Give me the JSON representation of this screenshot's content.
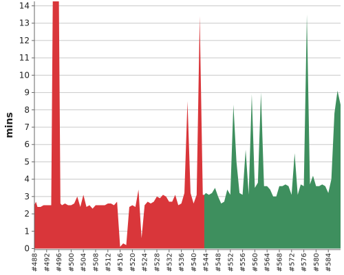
{
  "chart_data": {
    "type": "area",
    "title": "",
    "xlabel": "",
    "ylabel": "mins",
    "ylim": [
      0,
      14
    ],
    "grid": true,
    "y_ticks": [
      0,
      1,
      2,
      3,
      4,
      5,
      6,
      7,
      8,
      9,
      10,
      11,
      12,
      13,
      14
    ],
    "x_tick_labels": [
      "#488",
      "#492",
      "#496",
      "#500",
      "#504",
      "#508",
      "#512",
      "#516",
      "#520",
      "#524",
      "#528",
      "#532",
      "#536",
      "#540",
      "#544",
      "#548",
      "#552",
      "#556",
      "#560",
      "#564",
      "#568",
      "#572",
      "#576",
      "#580",
      "#584"
    ],
    "series": [
      {
        "color": "#d9363a",
        "points": [
          [
            488,
            2.5
          ],
          [
            488.5,
            2.7
          ],
          [
            489,
            2.4
          ],
          [
            490,
            2.4
          ],
          [
            491,
            2.5
          ],
          [
            492,
            2.5
          ],
          [
            493,
            2.5
          ],
          [
            493.5,
            2.5
          ],
          [
            494,
            14.3
          ],
          [
            495,
            14.3
          ],
          [
            496,
            14.3
          ],
          [
            496.5,
            2.6
          ],
          [
            497,
            2.5
          ],
          [
            498,
            2.6
          ],
          [
            499,
            2.5
          ],
          [
            500,
            2.5
          ],
          [
            501,
            2.6
          ],
          [
            502,
            3.0
          ],
          [
            503,
            2.4
          ],
          [
            504,
            3.1
          ],
          [
            505,
            2.4
          ],
          [
            506,
            2.5
          ],
          [
            507,
            2.3
          ],
          [
            508,
            2.5
          ],
          [
            509,
            2.5
          ],
          [
            510,
            2.5
          ],
          [
            511,
            2.5
          ],
          [
            512,
            2.6
          ],
          [
            513,
            2.6
          ],
          [
            514,
            2.5
          ],
          [
            515,
            2.7
          ],
          [
            516,
            0.1
          ],
          [
            517,
            0.3
          ],
          [
            518,
            0.2
          ],
          [
            519,
            2.4
          ],
          [
            520,
            2.5
          ],
          [
            521,
            2.4
          ],
          [
            522,
            3.4
          ],
          [
            523,
            0.6
          ],
          [
            524,
            2.5
          ],
          [
            525,
            2.7
          ],
          [
            526,
            2.6
          ],
          [
            527,
            2.7
          ],
          [
            528,
            3.0
          ],
          [
            529,
            2.9
          ],
          [
            530,
            3.1
          ],
          [
            531,
            3.0
          ],
          [
            532,
            2.7
          ],
          [
            533,
            2.7
          ],
          [
            534,
            3.1
          ],
          [
            535,
            2.5
          ],
          [
            536,
            2.6
          ],
          [
            537,
            3.2
          ],
          [
            538,
            8.5
          ],
          [
            539,
            3.2
          ],
          [
            540,
            2.6
          ],
          [
            541,
            3.1
          ],
          [
            542,
            13.4
          ],
          [
            543,
            3.1
          ],
          [
            543.5,
            3.1
          ]
        ]
      },
      {
        "color": "#3e8f5e",
        "points": [
          [
            543.5,
            3.1
          ],
          [
            544,
            3.2
          ],
          [
            545,
            3.1
          ],
          [
            546,
            3.2
          ],
          [
            547,
            3.5
          ],
          [
            548,
            3.0
          ],
          [
            549,
            2.6
          ],
          [
            550,
            2.7
          ],
          [
            551,
            3.4
          ],
          [
            552,
            3.1
          ],
          [
            553,
            8.3
          ],
          [
            554,
            5.0
          ],
          [
            555,
            3.2
          ],
          [
            556,
            3.1
          ],
          [
            557,
            5.7
          ],
          [
            558,
            3.1
          ],
          [
            559,
            8.9
          ],
          [
            560,
            3.5
          ],
          [
            561,
            3.8
          ],
          [
            562,
            9.0
          ],
          [
            563,
            3.6
          ],
          [
            564,
            3.6
          ],
          [
            565,
            3.4
          ],
          [
            566,
            3.0
          ],
          [
            567,
            3.0
          ],
          [
            568,
            3.6
          ],
          [
            569,
            3.6
          ],
          [
            570,
            3.7
          ],
          [
            571,
            3.6
          ],
          [
            572,
            3.1
          ],
          [
            573,
            5.5
          ],
          [
            574,
            3.1
          ],
          [
            575,
            3.7
          ],
          [
            576,
            3.6
          ],
          [
            577,
            13.5
          ],
          [
            578,
            3.7
          ],
          [
            579,
            4.2
          ],
          [
            580,
            3.6
          ],
          [
            581,
            3.6
          ],
          [
            582,
            3.7
          ],
          [
            583,
            3.6
          ],
          [
            584,
            3.2
          ],
          [
            585,
            4.0
          ],
          [
            586,
            7.8
          ],
          [
            587,
            9.1
          ],
          [
            588,
            8.3
          ]
        ]
      }
    ]
  }
}
